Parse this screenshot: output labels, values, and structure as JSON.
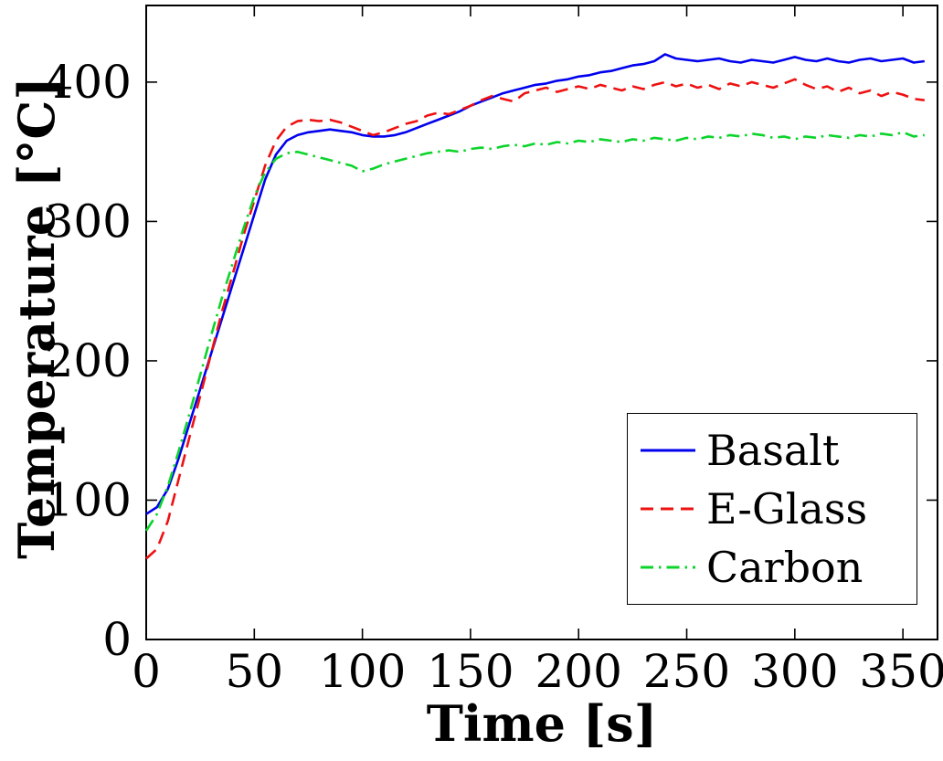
{
  "chart_data": {
    "type": "line",
    "title": "",
    "xlabel": "Time [s]",
    "ylabel": "Temperature [°C]",
    "xlim": [
      0,
      366
    ],
    "ylim": [
      0,
      455
    ],
    "xticks": [
      0,
      50,
      100,
      150,
      200,
      250,
      300,
      350
    ],
    "yticks": [
      0,
      100,
      200,
      300,
      400
    ],
    "grid": false,
    "legend_position": "lower right",
    "frame": true,
    "axis_color": "#000000",
    "x": [
      0,
      5,
      10,
      15,
      20,
      25,
      30,
      35,
      40,
      45,
      50,
      55,
      60,
      65,
      70,
      75,
      80,
      85,
      90,
      95,
      100,
      105,
      110,
      115,
      120,
      125,
      130,
      135,
      140,
      145,
      150,
      155,
      160,
      165,
      170,
      175,
      180,
      185,
      190,
      195,
      200,
      205,
      210,
      215,
      220,
      225,
      230,
      235,
      240,
      245,
      250,
      255,
      260,
      265,
      270,
      275,
      280,
      285,
      290,
      295,
      300,
      305,
      310,
      315,
      320,
      325,
      330,
      335,
      340,
      345,
      350,
      355,
      360
    ],
    "series": [
      {
        "name": "Basalt",
        "color": "#0000ee",
        "style": "solid",
        "values": [
          90,
          95,
          108,
          130,
          155,
          180,
          205,
          230,
          255,
          280,
          305,
          330,
          348,
          358,
          362,
          364,
          365,
          366,
          365,
          364,
          362,
          361,
          361,
          362,
          364,
          367,
          370,
          373,
          376,
          379,
          383,
          386,
          389,
          392,
          394,
          396,
          398,
          399,
          401,
          402,
          404,
          405,
          407,
          408,
          410,
          412,
          413,
          415,
          420,
          417,
          416,
          415,
          416,
          417,
          415,
          414,
          416,
          415,
          414,
          416,
          418,
          416,
          415,
          417,
          415,
          414,
          416,
          417,
          415,
          416,
          417,
          414,
          415
        ]
      },
      {
        "name": "E-Glass",
        "color": "#ee1111",
        "style": "dashed",
        "values": [
          58,
          65,
          85,
          115,
          145,
          175,
          205,
          235,
          262,
          290,
          315,
          340,
          358,
          368,
          372,
          373,
          372,
          373,
          371,
          368,
          365,
          362,
          364,
          367,
          370,
          372,
          376,
          378,
          377,
          380,
          383,
          387,
          390,
          388,
          386,
          392,
          394,
          396,
          393,
          395,
          397,
          395,
          398,
          396,
          394,
          397,
          395,
          398,
          400,
          397,
          399,
          396,
          398,
          395,
          399,
          397,
          400,
          398,
          396,
          399,
          402,
          398,
          395,
          397,
          393,
          396,
          392,
          394,
          390,
          393,
          391,
          388,
          387
        ]
      },
      {
        "name": "Carbon",
        "color": "#0bd42a",
        "style": "dashdot",
        "values": [
          78,
          90,
          110,
          135,
          162,
          190,
          218,
          245,
          270,
          295,
          318,
          335,
          345,
          349,
          350,
          348,
          346,
          344,
          342,
          340,
          336,
          338,
          341,
          343,
          345,
          347,
          349,
          350,
          351,
          350,
          352,
          353,
          352,
          354,
          355,
          354,
          356,
          355,
          357,
          356,
          358,
          357,
          359,
          358,
          357,
          359,
          358,
          360,
          359,
          358,
          360,
          359,
          361,
          360,
          362,
          361,
          363,
          362,
          360,
          361,
          359,
          361,
          360,
          362,
          361,
          360,
          362,
          361,
          363,
          362,
          364,
          361,
          362
        ]
      }
    ]
  }
}
